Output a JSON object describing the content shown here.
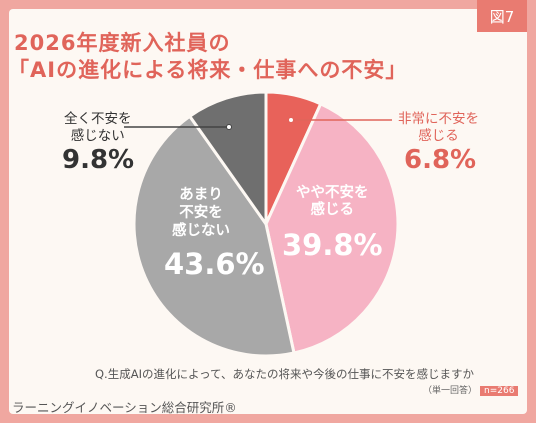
{
  "figure_tag": "図7",
  "title_line1": "2026年度新入社員の",
  "title_line2": "「AIの進化による将来・仕事への不安」",
  "question": "Q.生成AIの進化によって、あなたの将来や今後の仕事に不安を感じますか",
  "sample_note": "（単一回答）",
  "sample_size": "n=266",
  "footer": "ラーニングイノベーション総合研究所®",
  "colors": {
    "background": "#f0a7a0",
    "title": "#e0645a",
    "very_anxious": "#e8625a",
    "somewhat_anxious": "#f6b3c4",
    "not_very_anxious": "#a8a8a8",
    "not_anxious_at_all": "#6f6f6f"
  },
  "chart_data": {
    "type": "pie",
    "start": "12 o'clock, clockwise",
    "slices": [
      {
        "label_lines": [
          "非常に不安を",
          "感じる"
        ],
        "value": 6.8,
        "value_text": "6.8%",
        "color": "#e8625a"
      },
      {
        "label_lines": [
          "やや不安を",
          "感じる"
        ],
        "value": 39.8,
        "value_text": "39.8%",
        "color": "#f6b3c4"
      },
      {
        "label_lines": [
          "あまり",
          "不安を",
          "感じない"
        ],
        "value": 43.6,
        "value_text": "43.6%",
        "color": "#a8a8a8"
      },
      {
        "label_lines": [
          "全く不安を",
          "感じない"
        ],
        "value": 9.8,
        "value_text": "9.8%",
        "color": "#6f6f6f"
      }
    ]
  }
}
